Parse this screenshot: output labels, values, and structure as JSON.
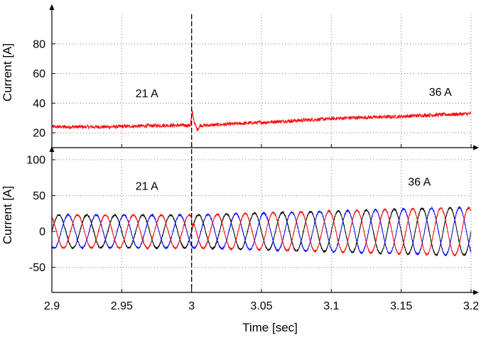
{
  "chart_data": [
    {
      "type": "line",
      "title": "",
      "xlabel": "",
      "ylabel": "Current [A]",
      "xlim": [
        2.9,
        3.2
      ],
      "ylim": [
        10,
        100
      ],
      "xticks": [
        2.9,
        2.95,
        3.0,
        3.05,
        3.1,
        3.15,
        3.2
      ],
      "yticks": [
        20,
        40,
        60,
        80
      ],
      "ytick_labels": [
        "20",
        "40",
        "60",
        "80"
      ],
      "grid": true,
      "event_line_x": 3.0,
      "annotations": [
        {
          "text": "21 A",
          "x": 2.968,
          "y": 44
        },
        {
          "text": "36 A",
          "x": 3.178,
          "y": 45
        }
      ],
      "series": [
        {
          "color": "#ff0000",
          "x": [
            2.9,
            2.92,
            2.94,
            2.96,
            2.98,
            2.999,
            3.0005,
            3.002,
            3.004,
            3.006,
            3.01,
            3.03,
            3.05,
            3.07,
            3.09,
            3.11,
            3.13,
            3.15,
            3.17,
            3.19,
            3.2
          ],
          "values": [
            24,
            24,
            24,
            24.5,
            25,
            25,
            34,
            27,
            22,
            25,
            25,
            26,
            27,
            28,
            29,
            30,
            30.5,
            31,
            32,
            32.5,
            33
          ],
          "noise": 1.2
        }
      ]
    },
    {
      "type": "line",
      "title": "",
      "xlabel": "Time [sec]",
      "ylabel": "Current [A]",
      "xlim": [
        2.9,
        3.2
      ],
      "ylim": [
        -85,
        105
      ],
      "xticks": [
        2.9,
        2.95,
        3.0,
        3.05,
        3.1,
        3.15,
        3.2
      ],
      "xtick_labels": [
        "2.9",
        "2.95",
        "3",
        "3.05",
        "3.1",
        "3.15",
        "3.2"
      ],
      "yticks": [
        -50,
        0,
        50,
        100
      ],
      "ytick_labels": [
        "-50",
        "0",
        "50",
        "100"
      ],
      "grid": true,
      "event_line_x": 3.0,
      "annotations": [
        {
          "text": "21 A",
          "x": 2.968,
          "y": 58
        },
        {
          "text": "36 A",
          "x": 3.163,
          "y": 64
        }
      ],
      "frequency_hz": 50,
      "amplitude_before": 23,
      "amplitude_after": 33,
      "series": [
        {
          "color": "#000000",
          "phase_deg": 0
        },
        {
          "color": "#0000ff",
          "phase_deg": -120
        },
        {
          "color": "#ff0000",
          "phase_deg": 120
        }
      ]
    }
  ]
}
